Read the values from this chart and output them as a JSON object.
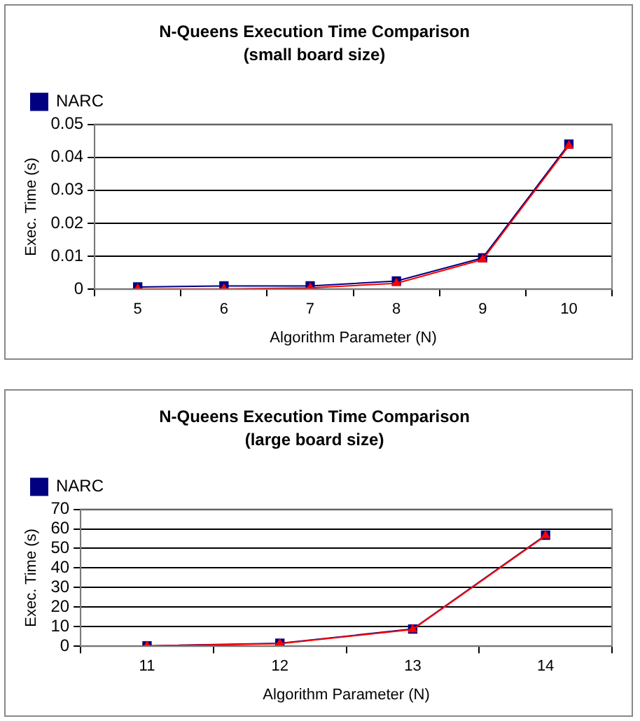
{
  "chart_data": [
    {
      "type": "line",
      "title": "N-Queens Execution Time Comparison",
      "subtitle": "(small board size)",
      "xlabel": "Algorithm Parameter (N)",
      "ylabel": "Exec. Time (s)",
      "categories": [
        "5",
        "6",
        "7",
        "8",
        "9",
        "10"
      ],
      "series": [
        {
          "name": "NARC",
          "color": "#000080",
          "marker": "square",
          "values": [
            0.0007,
            0.001,
            0.001,
            0.0025,
            0.0095,
            0.044
          ]
        },
        {
          "color": "#ff0000",
          "marker": "triangle",
          "values": [
            0.0001,
            0.0001,
            0.0004,
            0.0018,
            0.009,
            0.0435
          ]
        }
      ],
      "ylim": [
        0,
        0.05
      ],
      "yticks": [
        0,
        0.01,
        0.02,
        0.03,
        0.04,
        0.05
      ],
      "grid": "y",
      "legend": "top left"
    },
    {
      "type": "line",
      "title": "N-Queens Execution Time Comparison",
      "subtitle": "(large board size)",
      "xlabel": "Algorithm Parameter (N)",
      "ylabel": "Exec. Time (s)",
      "categories": [
        "11",
        "12",
        "13",
        "14"
      ],
      "series": [
        {
          "name": "NARC",
          "color": "#000080",
          "marker": "square",
          "values": [
            0.2,
            1.5,
            8.8,
            56.8
          ]
        },
        {
          "color": "#ff0000",
          "marker": "triangle",
          "values": [
            0.1,
            1.3,
            8.6,
            56.5
          ]
        }
      ],
      "ylim": [
        0,
        70
      ],
      "yticks": [
        0,
        10,
        20,
        30,
        40,
        50,
        60,
        70
      ],
      "grid": "y",
      "legend": "top left"
    }
  ]
}
